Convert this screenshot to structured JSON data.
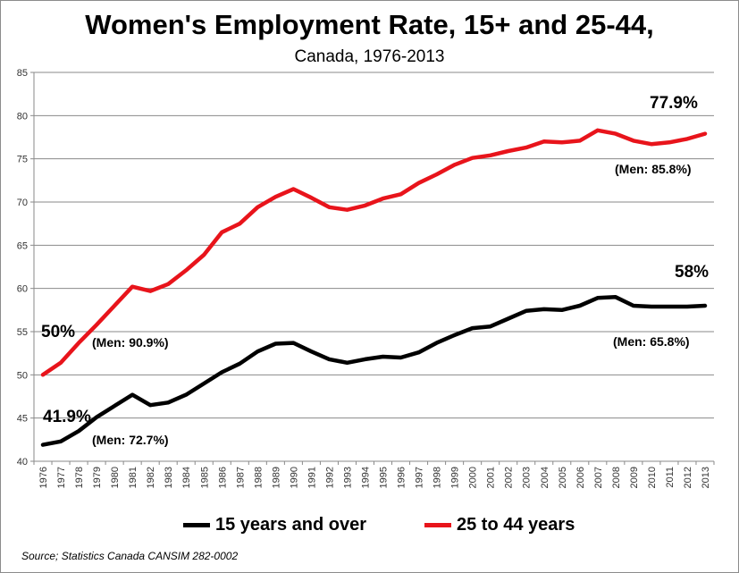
{
  "chart_data": {
    "type": "line",
    "title": "Women's Employment Rate, 15+ and 25-44,",
    "subtitle": "Canada, 1976-2013",
    "xlabel": "",
    "ylabel": "",
    "ylim": [
      40,
      85
    ],
    "yticks": [
      "40",
      "45",
      "50",
      "55",
      "60",
      "65",
      "70",
      "75",
      "80",
      "85"
    ],
    "categories": [
      "1976",
      "1977",
      "1978",
      "1979",
      "1980",
      "1981",
      "1982",
      "1983",
      "1984",
      "1985",
      "1986",
      "1987",
      "1988",
      "1989",
      "1990",
      "1991",
      "1992",
      "1993",
      "1994",
      "1995",
      "1996",
      "1997",
      "1998",
      "1999",
      "2000",
      "2001",
      "2002",
      "2003",
      "2004",
      "2005",
      "2006",
      "2007",
      "2008",
      "2009",
      "2010",
      "2011",
      "2012",
      "2013"
    ],
    "series": [
      {
        "name": "15 years and over",
        "color": "#000000",
        "values": [
          41.9,
          42.3,
          43.5,
          45.1,
          46.4,
          47.7,
          46.5,
          46.8,
          47.7,
          49.0,
          50.3,
          51.3,
          52.7,
          53.6,
          53.7,
          52.7,
          51.8,
          51.4,
          51.8,
          52.1,
          52.0,
          52.6,
          53.7,
          54.6,
          55.4,
          55.6,
          56.5,
          57.4,
          57.6,
          57.5,
          58.0,
          58.9,
          59.0,
          58.0,
          57.9,
          57.9,
          57.9,
          58.0
        ]
      },
      {
        "name": "25 to 44 years",
        "color": "#e8141b",
        "values": [
          50.0,
          51.4,
          53.7,
          55.8,
          58.0,
          60.2,
          59.7,
          60.5,
          62.1,
          63.9,
          66.5,
          67.5,
          69.4,
          70.6,
          71.5,
          70.5,
          69.4,
          69.1,
          69.6,
          70.4,
          70.9,
          72.2,
          73.2,
          74.3,
          75.1,
          75.4,
          75.9,
          76.3,
          77.0,
          76.9,
          77.1,
          78.3,
          77.9,
          77.1,
          76.7,
          76.9,
          77.3,
          77.9
        ]
      }
    ],
    "annotations": {
      "red_start": "50%",
      "red_start_men": "(Men: 90.9%)",
      "red_end": "77.9%",
      "red_end_men": "(Men: 85.8%)",
      "black_start": "41.9%",
      "black_start_men": "(Men: 72.7%)",
      "black_end": "58%",
      "black_end_men": "(Men: 65.8%)"
    },
    "grid": true,
    "legend": "bottom"
  },
  "source": "Source; Statistics Canada CANSIM 282-0002"
}
